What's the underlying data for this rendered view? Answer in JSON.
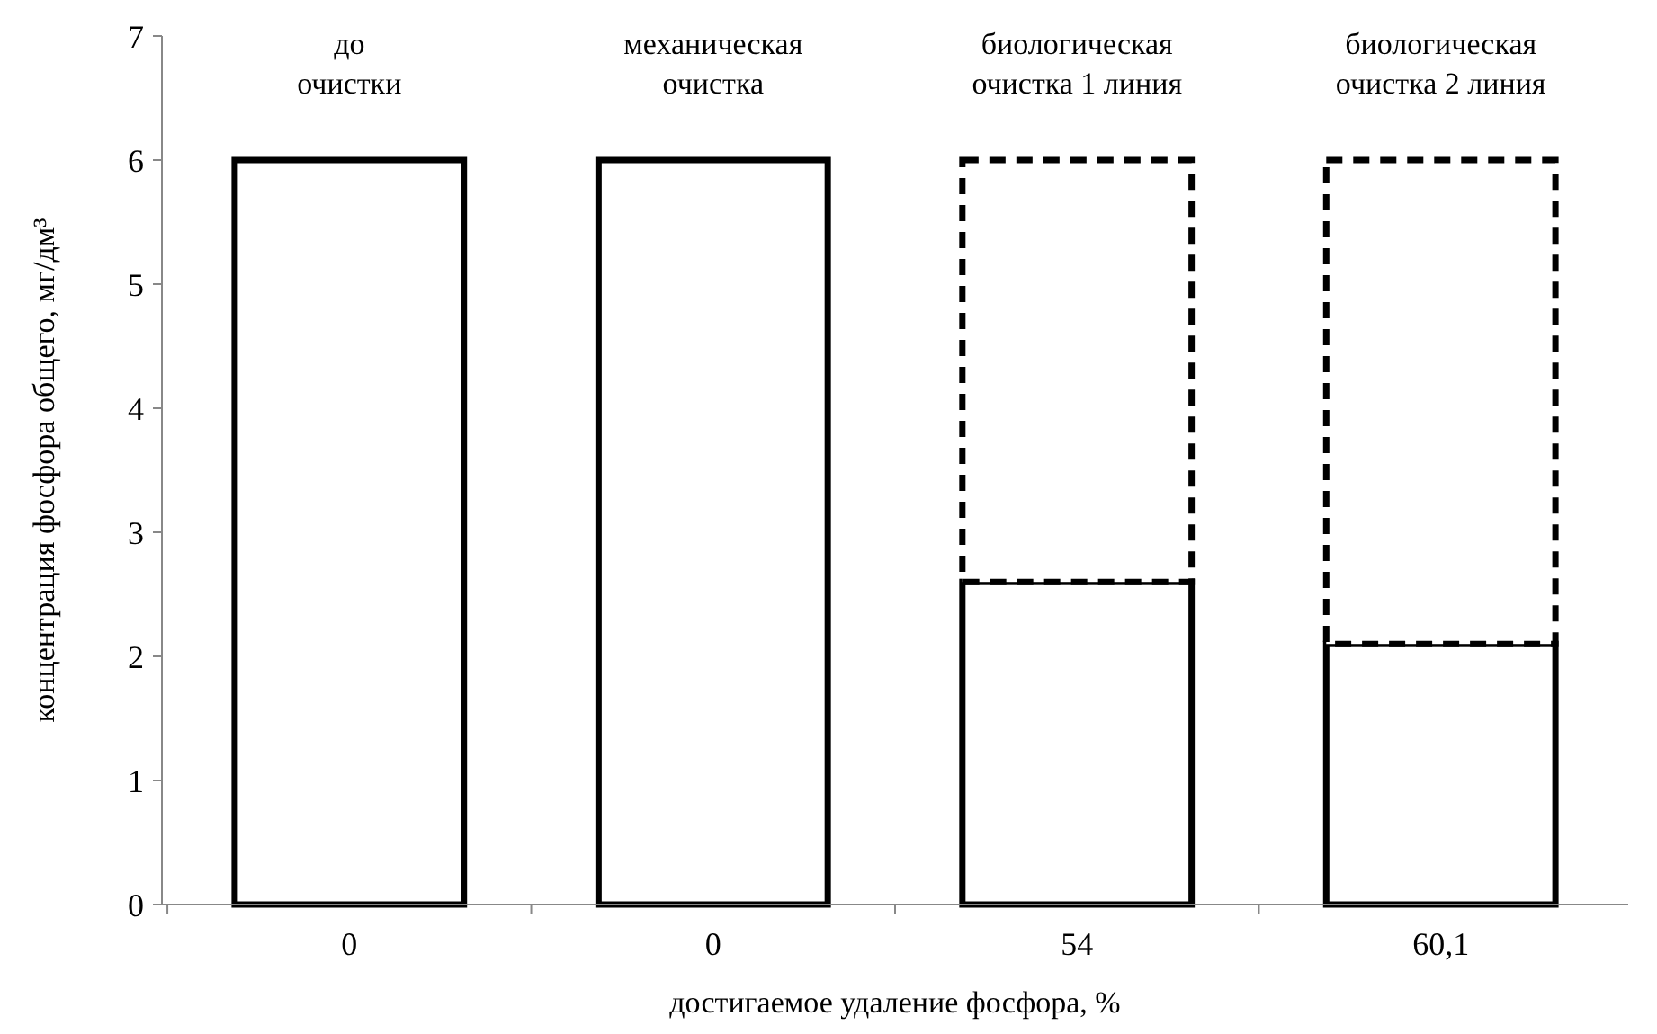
{
  "chart_data": {
    "type": "bar",
    "stacked": true,
    "xlabel": "достигаемое удаление фосфора, %",
    "ylabel": "концентрация фосфора общего, мг/дм³",
    "categories": [
      "0",
      "0",
      "54",
      "60,1"
    ],
    "series": [
      {
        "color": "#000000",
        "line_style": "solid",
        "values": [
          6,
          6,
          2.6,
          2.1
        ]
      },
      {
        "color": "#000000",
        "line_style": "dashed",
        "values": [
          null,
          null,
          3.4,
          3.9
        ]
      }
    ],
    "annotations": [
      "до очистки",
      "механическая очистка",
      "биологическая очистка 1 линия",
      "биологическая очистка 2 линия"
    ],
    "ylim": [
      0,
      7
    ],
    "yticks": [
      0,
      1,
      2,
      3,
      4,
      5,
      6,
      7
    ],
    "grid": false
  }
}
